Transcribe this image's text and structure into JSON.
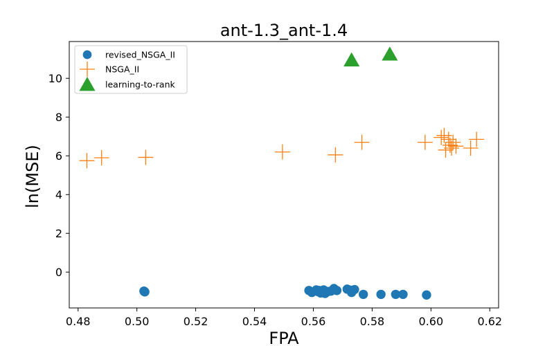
{
  "chart_data": {
    "type": "scatter",
    "title": "ant-1.3_ant-1.4",
    "xlabel": "FPA",
    "ylabel": "ln(MSE)",
    "xlim": [
      0.477,
      0.623
    ],
    "ylim": [
      -1.85,
      11.9
    ],
    "xticks": [
      0.48,
      0.5,
      0.52,
      0.54,
      0.56,
      0.58,
      0.6,
      0.62
    ],
    "xtick_labels": [
      "0.48",
      "0.50",
      "0.52",
      "0.54",
      "0.56",
      "0.58",
      "0.60",
      "0.62"
    ],
    "yticks": [
      0,
      2,
      4,
      6,
      8,
      10
    ],
    "ytick_labels": [
      "0",
      "2",
      "4",
      "6",
      "8",
      "10"
    ],
    "grid": false,
    "legend_position": "top-left",
    "series": [
      {
        "name": "revised_NSGA_II",
        "marker": "circle",
        "color": "#1f77b4",
        "points": [
          [
            0.5025,
            -1.0
          ],
          [
            0.5027,
            -1.02
          ],
          [
            0.5024,
            -0.98
          ],
          [
            0.5585,
            -0.95
          ],
          [
            0.5595,
            -1.05
          ],
          [
            0.561,
            -0.92
          ],
          [
            0.5615,
            -1.0
          ],
          [
            0.562,
            -0.95
          ],
          [
            0.5625,
            -1.08
          ],
          [
            0.563,
            -1.02
          ],
          [
            0.5635,
            -0.92
          ],
          [
            0.564,
            -1.1
          ],
          [
            0.565,
            -1.0
          ],
          [
            0.566,
            -0.98
          ],
          [
            0.567,
            -0.85
          ],
          [
            0.568,
            -0.95
          ],
          [
            0.5715,
            -0.88
          ],
          [
            0.5725,
            -0.93
          ],
          [
            0.573,
            -1.05
          ],
          [
            0.574,
            -0.9
          ],
          [
            0.577,
            -1.15
          ],
          [
            0.583,
            -1.15
          ],
          [
            0.588,
            -1.15
          ],
          [
            0.5905,
            -1.15
          ],
          [
            0.5985,
            -1.18
          ]
        ]
      },
      {
        "name": "NSGA_II",
        "marker": "plus",
        "color": "#ff7f0e",
        "points": [
          [
            0.483,
            5.75
          ],
          [
            0.488,
            5.9
          ],
          [
            0.503,
            5.92
          ],
          [
            0.5495,
            6.2
          ],
          [
            0.5675,
            6.05
          ],
          [
            0.5765,
            6.7
          ],
          [
            0.598,
            6.7
          ],
          [
            0.6035,
            6.95
          ],
          [
            0.6045,
            7.05
          ],
          [
            0.605,
            6.3
          ],
          [
            0.606,
            6.85
          ],
          [
            0.6065,
            6.55
          ],
          [
            0.607,
            6.4
          ],
          [
            0.6075,
            6.7
          ],
          [
            0.6085,
            6.5
          ],
          [
            0.6135,
            6.4
          ],
          [
            0.6155,
            6.85
          ]
        ]
      },
      {
        "name": "learning-to-rank",
        "marker": "triangle",
        "color": "#2ca02c",
        "points": [
          [
            0.573,
            10.95
          ],
          [
            0.586,
            11.25
          ]
        ]
      }
    ]
  }
}
